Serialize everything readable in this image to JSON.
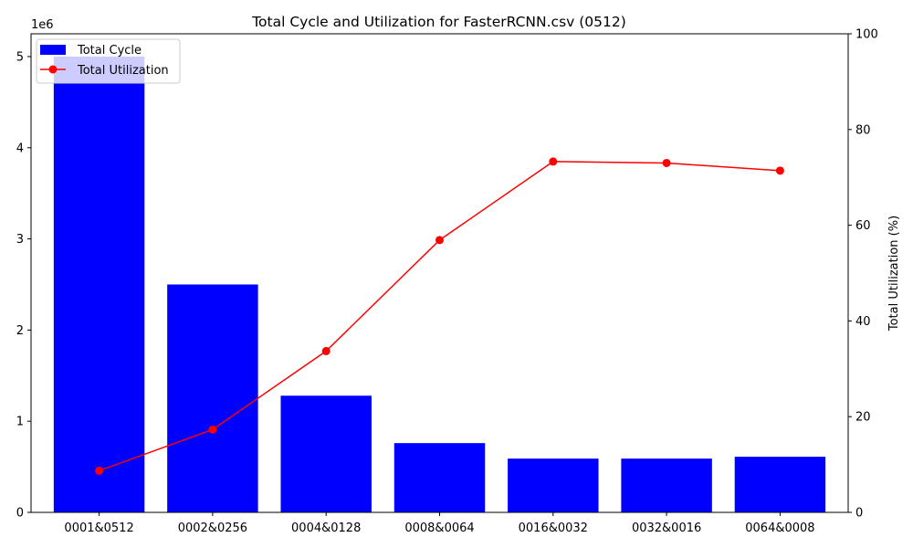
{
  "chart_data": {
    "type": "bar",
    "title": "Total Cycle and Utilization for FasterRCNN.csv (0512)",
    "categories": [
      "0001&0512",
      "0002&0256",
      "0004&0128",
      "0008&0064",
      "0016&0032",
      "0032&0016",
      "0064&0008"
    ],
    "series": [
      {
        "name": "Total Cycle",
        "type": "bar",
        "axis": "left",
        "color": "#0000ff",
        "values": [
          5000000,
          2500000,
          1280000,
          760000,
          590000,
          590000,
          610000
        ]
      },
      {
        "name": "Total Utilization",
        "type": "line",
        "axis": "right",
        "color": "#ff0000",
        "marker": "circle",
        "values": [
          8.7,
          17.3,
          33.7,
          56.9,
          73.3,
          73.0,
          71.4
        ]
      }
    ],
    "y_left": {
      "label": "",
      "ylim": [
        0,
        5250000
      ],
      "ticks": [
        0,
        1000000,
        2000000,
        3000000,
        4000000,
        5000000
      ],
      "tick_labels": [
        "0",
        "1",
        "2",
        "3",
        "4",
        "5"
      ],
      "offset_text": "1e6"
    },
    "y_right": {
      "label": "Total Utilization (%)",
      "ylim": [
        0,
        100
      ],
      "ticks": [
        0,
        20,
        40,
        60,
        80,
        100
      ],
      "tick_labels": [
        "0",
        "20",
        "40",
        "60",
        "80",
        "100"
      ]
    },
    "xlabel": "",
    "grid": false,
    "legend": {
      "position": "top-left",
      "entries": [
        "Total Cycle",
        "Total Utilization"
      ]
    }
  }
}
